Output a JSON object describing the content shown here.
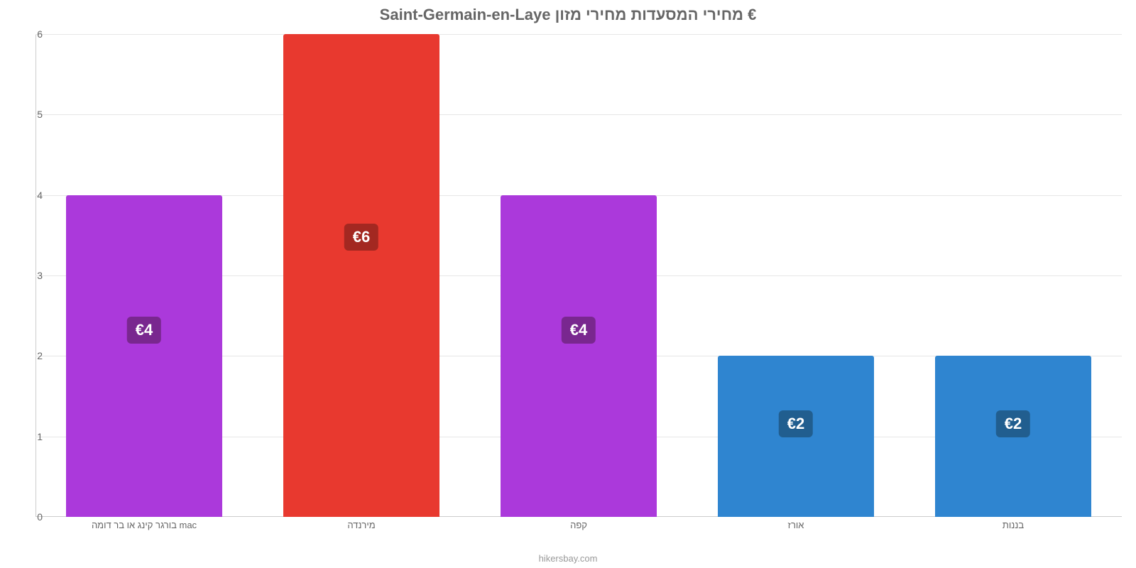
{
  "chart": {
    "type": "bar",
    "title": "Saint-Germain-en-Laye מחירי המסעדות מחירי מזון €",
    "title_fontsize": 22,
    "title_color": "#666666",
    "attribution": "hikersbay.com",
    "attribution_fontsize": 13,
    "attribution_color": "#999999",
    "background_color": "#ffffff",
    "grid_color": "#e6e6e6",
    "axis_color": "#cccccc",
    "ylim": [
      0,
      6
    ],
    "yticks": [
      0,
      1,
      2,
      3,
      4,
      5,
      6
    ],
    "ytick_fontsize": 14,
    "ytick_color": "#666666",
    "xlabel_fontsize": 13,
    "xlabel_color": "#666666",
    "value_label_fontsize": 22,
    "bar_width_ratio": 0.72,
    "categories": [
      "בורגר קינג או בר דומה mac",
      "מירנדה",
      "קפה",
      "אורז",
      "בננות"
    ],
    "values": [
      4,
      6,
      4,
      2,
      2
    ],
    "value_labels": [
      "€4",
      "€6",
      "€4",
      "€2",
      "€2"
    ],
    "bar_colors": [
      "#ab39db",
      "#e8392f",
      "#ab39db",
      "#2f85d0",
      "#2f85d0"
    ],
    "badge_colors": [
      "#79278f",
      "#a32821",
      "#79278f",
      "#215e8f",
      "#215e8f"
    ]
  }
}
